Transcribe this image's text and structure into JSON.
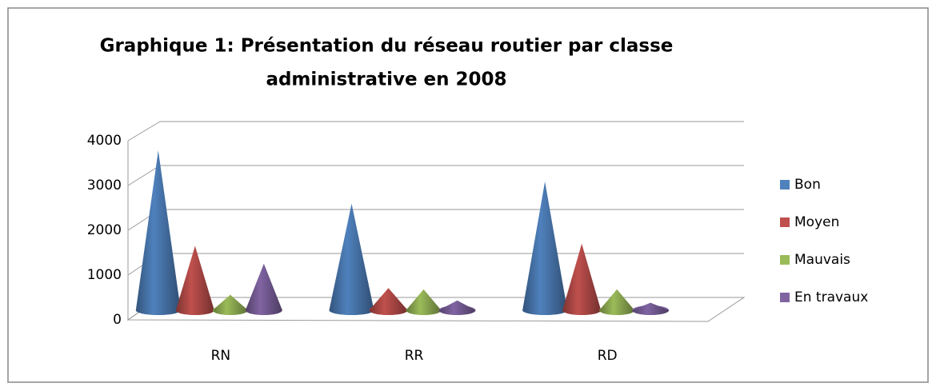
{
  "chart_data": {
    "type": "cone3d",
    "title": [
      "Graphique 1: Présentation du réseau routier par classe",
      "administrative en 2008"
    ],
    "categories": [
      "RN",
      "RR",
      "RD"
    ],
    "series": [
      {
        "name": "Bon",
        "color": "#4f81bd",
        "values": [
          3600,
          2400,
          2900
        ]
      },
      {
        "name": "Moyen",
        "color": "#c0504d",
        "values": [
          1450,
          500,
          1500
        ]
      },
      {
        "name": "Mauvais",
        "color": "#9bbb59",
        "values": [
          350,
          470,
          470
        ]
      },
      {
        "name": "En travaux",
        "color": "#8064a2",
        "values": [
          1050,
          220,
          170
        ]
      }
    ],
    "ylim": [
      0,
      4000
    ],
    "yticks": [
      0,
      1000,
      2000,
      3000,
      4000
    ],
    "grid": true,
    "legend": "right"
  }
}
